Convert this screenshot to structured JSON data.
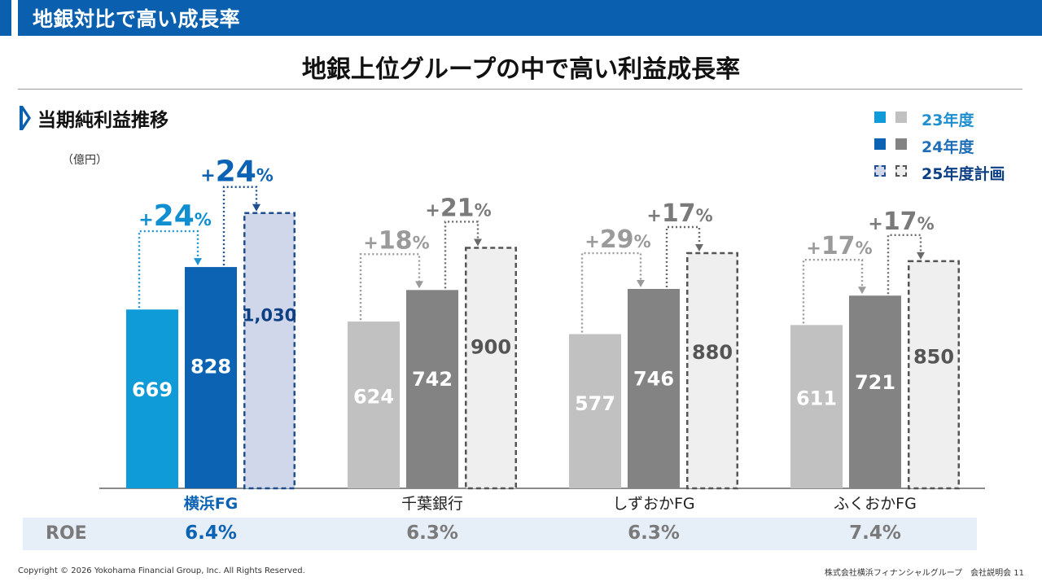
{
  "header": {
    "title": "地銀対比で高い成長率"
  },
  "headline": "地銀上位グループの中で高い利益成長率",
  "section": {
    "title": "当期純利益推移",
    "unit": "（億円）"
  },
  "legend": [
    {
      "label": "23年度",
      "label_color": "#1f8fd0"
    },
    {
      "label": "24年度",
      "label_color": "#1f6fb8"
    },
    {
      "label": "25年度計画",
      "label_color": "#0d3f84"
    }
  ],
  "colors": {
    "accent_light": "#0f9ad8",
    "accent_mid": "#0d63b3",
    "accent_plan_fill": "#d0d7ea",
    "accent_plan_border": "#1f4f8f",
    "gray_light": "#c1c1c1",
    "gray_mid": "#838383",
    "gray_plan_fill": "#efefef",
    "gray_plan_border": "#555555"
  },
  "chart_data": {
    "type": "bar",
    "title": "当期純利益推移",
    "ylabel": "（億円）",
    "categories": [
      "横浜FG",
      "千葉銀行",
      "しずおかFG",
      "ふくおかFG"
    ],
    "series": [
      {
        "name": "23年度",
        "values": [
          669,
          624,
          577,
          611
        ]
      },
      {
        "name": "24年度",
        "values": [
          828,
          742,
          746,
          721
        ]
      },
      {
        "name": "25年度計画",
        "values": [
          1030,
          900,
          880,
          850
        ]
      }
    ],
    "value_labels": [
      [
        "669",
        "828",
        "1,030"
      ],
      [
        "624",
        "742",
        "900"
      ],
      [
        "577",
        "746",
        "880"
      ],
      [
        "611",
        "721",
        "850"
      ]
    ],
    "growth_23_24": [
      "+24%",
      "+18%",
      "+29%",
      "+17%"
    ],
    "growth_24_25": [
      "+24%",
      "+21%",
      "+17%",
      "+17%"
    ],
    "highlight_category": "横浜FG",
    "ylim": [
      0,
      1100
    ],
    "grid": false
  },
  "roe": {
    "label": "ROE",
    "values": [
      "6.4%",
      "6.3%",
      "6.3%",
      "7.4%"
    ]
  },
  "footer": {
    "copyright": "Copyright © 2026 Yokohama Financial Group, Inc. All Rights Reserved.",
    "right": "株式会社横浜フィナンシャルグループ　会社説明会  11"
  }
}
